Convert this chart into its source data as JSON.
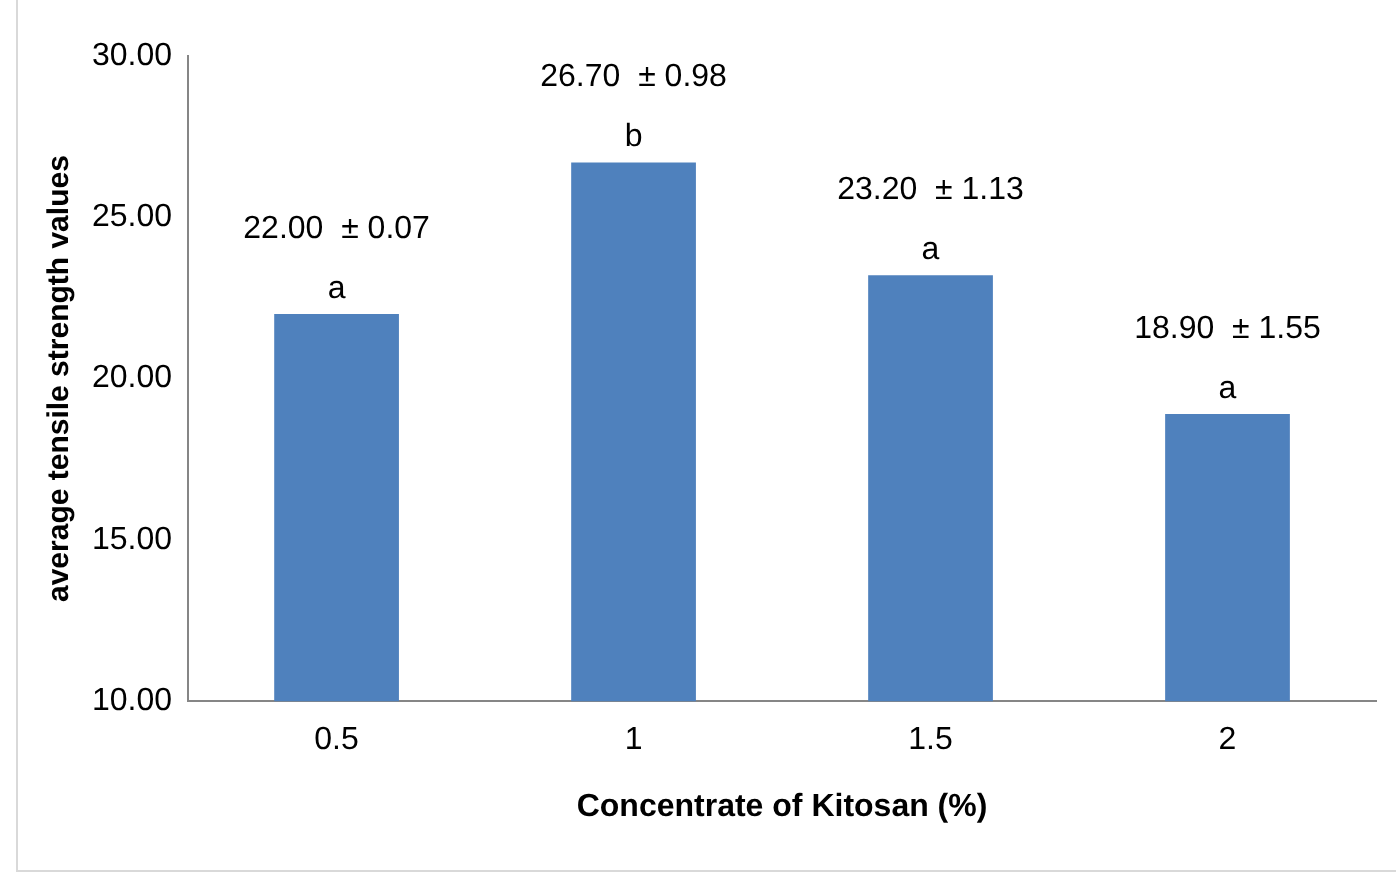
{
  "chart_data": {
    "type": "bar",
    "xlabel": "Concentrate of Kitosan (%)",
    "ylabel": "average tensile strength values",
    "categories": [
      "0.5",
      "1",
      "1.5",
      "2"
    ],
    "values": [
      22.0,
      26.7,
      23.2,
      18.9
    ],
    "value_labels": [
      "22.00  ± 0.07",
      "26.70  ± 0.98",
      "23.20  ± 1.13",
      "18.90  ± 1.55"
    ],
    "color": "#4f81bd",
    "ylim": [
      10,
      30
    ],
    "yticks": [
      {
        "value": 10,
        "label": "10.00"
      },
      {
        "value": 15,
        "label": "15.00"
      },
      {
        "value": 20,
        "label": "20.00"
      },
      {
        "value": 25,
        "label": "25.00"
      },
      {
        "value": 30,
        "label": "30.00"
      }
    ],
    "annotations": [
      {
        "text": "a",
        "x": "0.5",
        "y": 22.0
      },
      {
        "text": "b",
        "x": "1",
        "y": 26.7
      },
      {
        "text": "a",
        "x": "1.5",
        "y": 23.2
      },
      {
        "text": "a",
        "x": "2",
        "y": 18.9
      }
    ],
    "grid": false,
    "legend": false
  }
}
